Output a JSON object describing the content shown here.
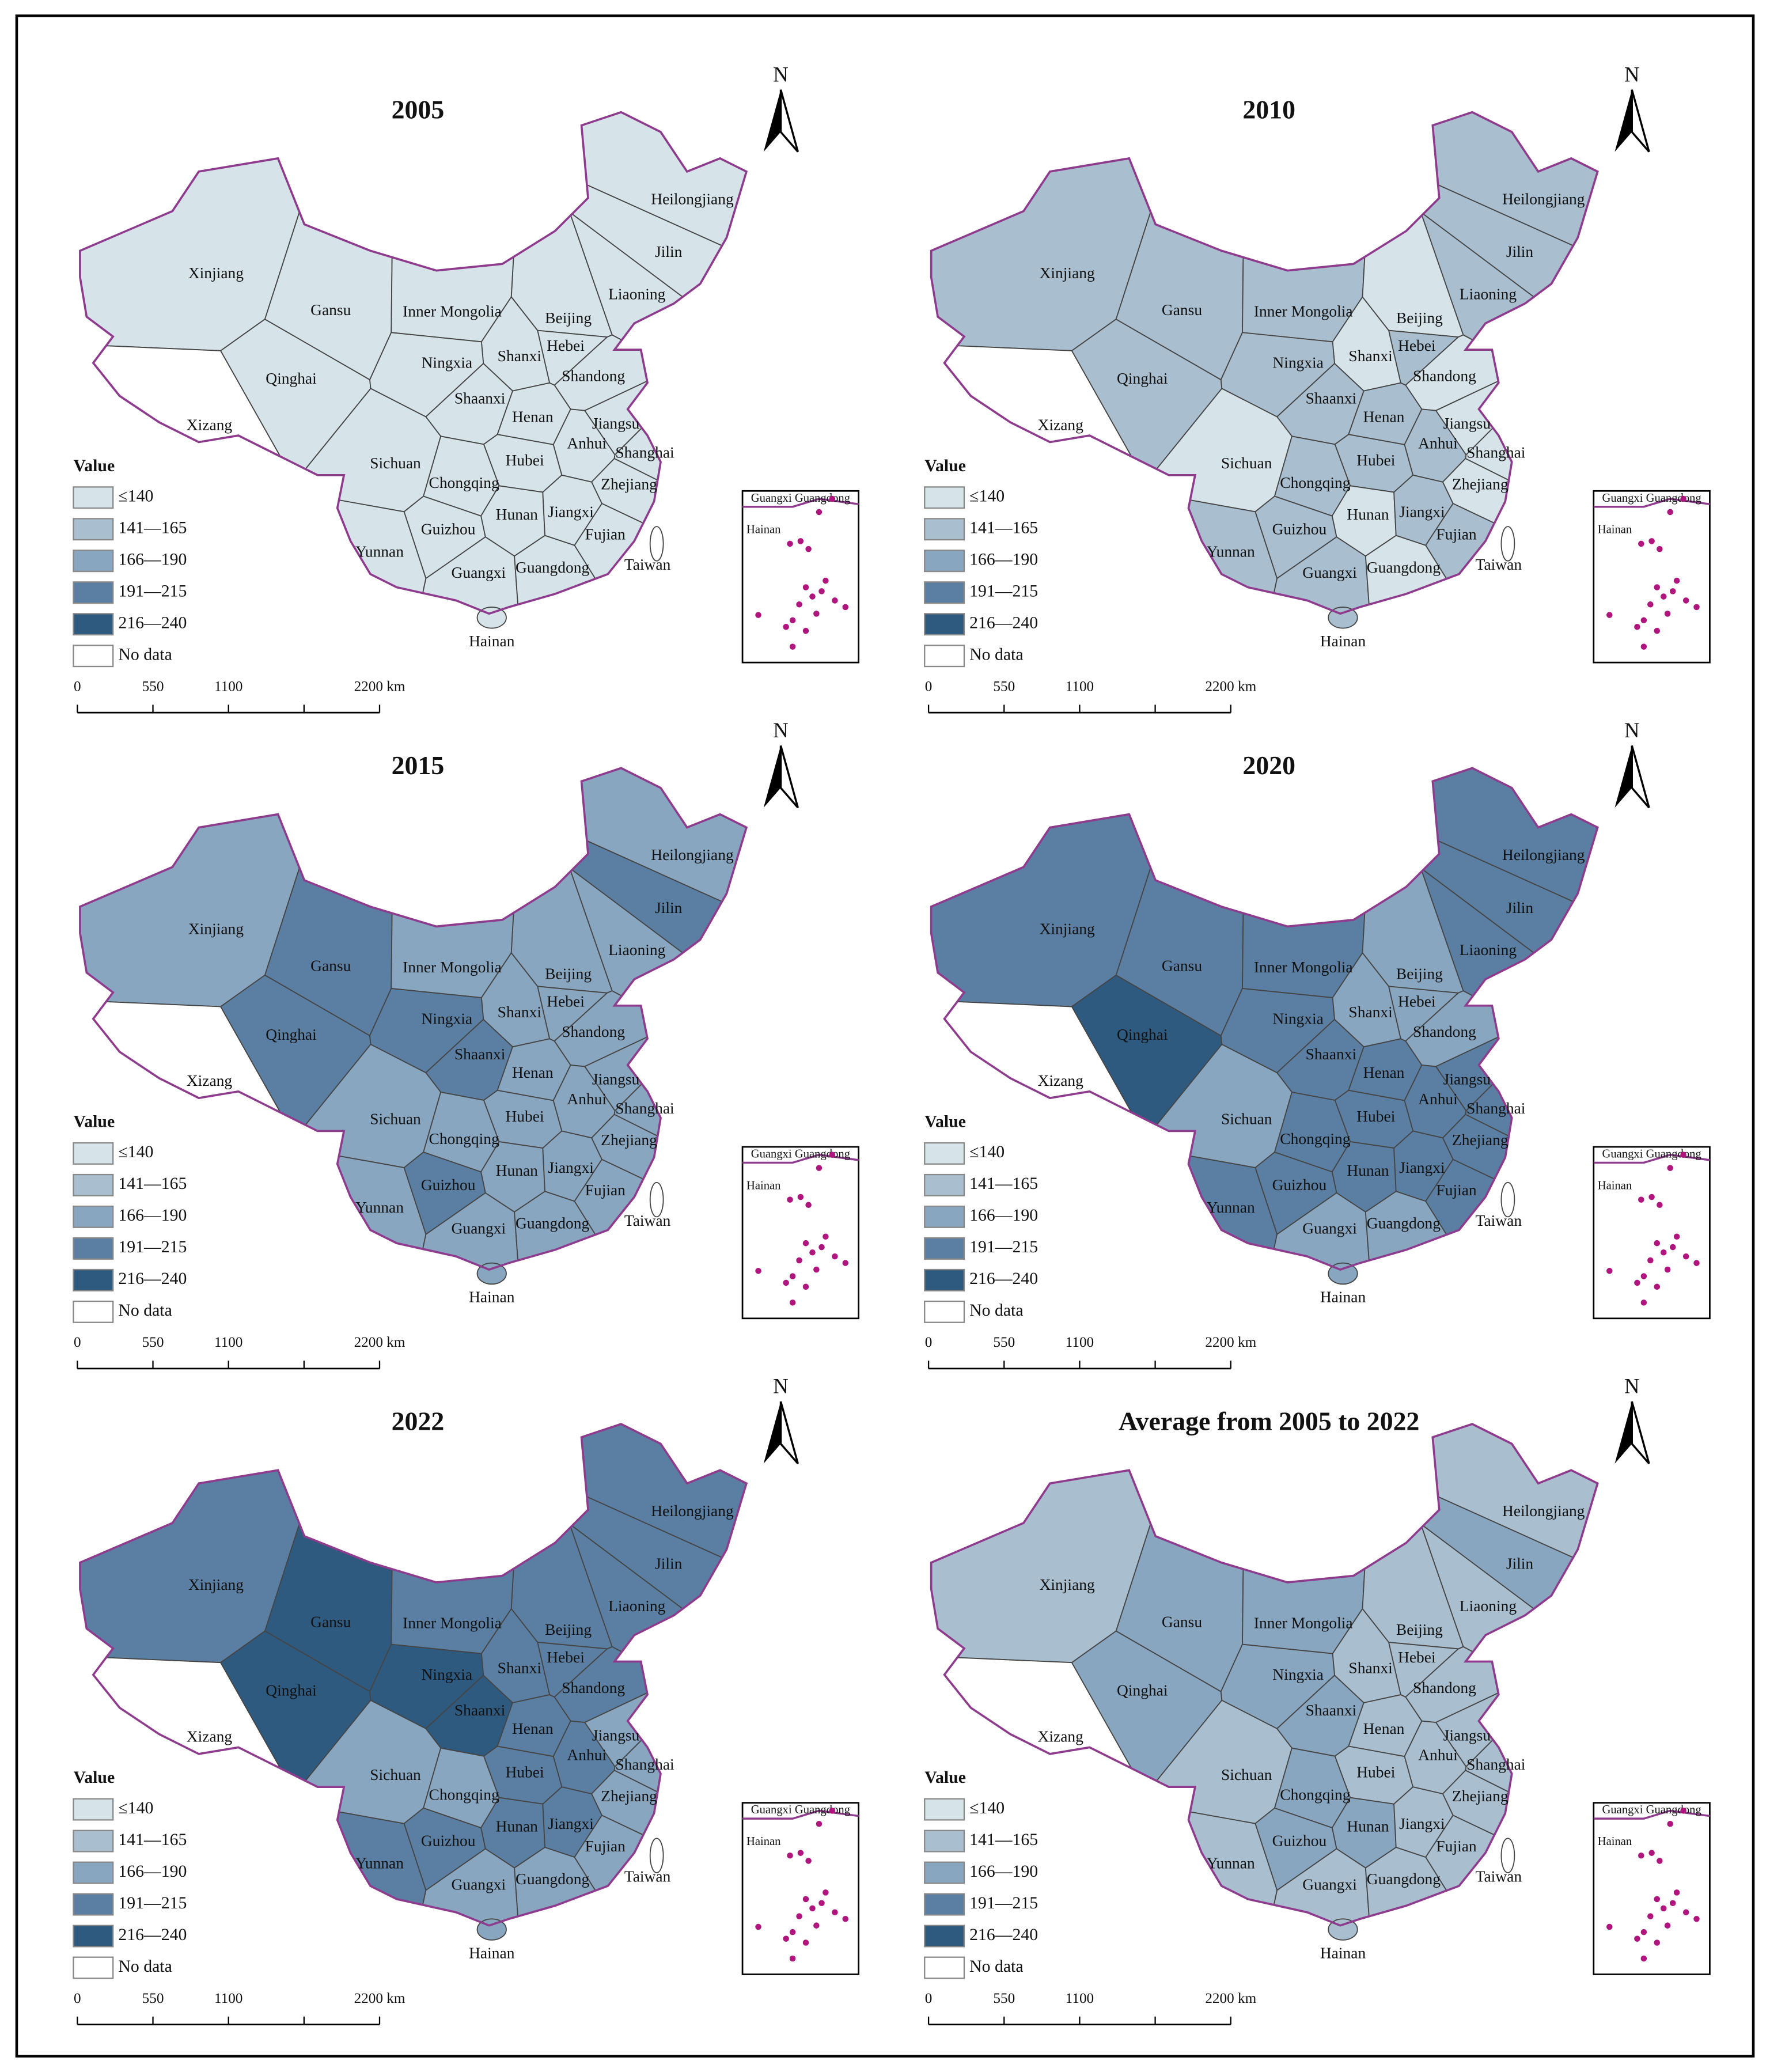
{
  "north": "N",
  "provinces": [
    "Xinjiang",
    "Xizang",
    "Qinghai",
    "Gansu",
    "Inner Mongolia",
    "Heilongjiang",
    "Jilin",
    "Liaoning",
    "Beijing",
    "Hebei",
    "Shanxi",
    "Ningxia",
    "Shaanxi",
    "Shandong",
    "Henan",
    "Jiangsu",
    "Anhui",
    "Shanghai",
    "Hubei",
    "Sichuan",
    "Chongqing",
    "Zhejiang",
    "Hunan",
    "Jiangxi",
    "Fujian",
    "Guizhou",
    "Yunnan",
    "Guangxi",
    "Guangdong",
    "Hainan",
    "Taiwan"
  ],
  "legend": {
    "title": "Value",
    "items": [
      {
        "label": "≤140",
        "color": "#d6e4ea"
      },
      {
        "label": "141—165",
        "color": "#a9bfcf"
      },
      {
        "label": "166—190",
        "color": "#89a6c0"
      },
      {
        "label": "191—215",
        "color": "#5b7fa3"
      },
      {
        "label": "216—240",
        "color": "#2f5a80"
      },
      {
        "label": "No data",
        "color": "#ffffff"
      }
    ]
  },
  "scale_bar": {
    "ticks": [
      0,
      550,
      1100,
      {
        "value": 2200,
        "label": "2200 km"
      }
    ]
  },
  "inset": {
    "labels": [
      "Guangxi Guangdong",
      "Hainan"
    ]
  },
  "panels": [
    {
      "title": "2005",
      "classes": [
        0,
        5,
        0,
        0,
        0,
        0,
        0,
        0,
        0,
        0,
        0,
        0,
        0,
        0,
        0,
        0,
        0,
        0,
        0,
        0,
        0,
        0,
        0,
        0,
        0,
        0,
        0,
        0,
        0,
        0,
        5
      ]
    },
    {
      "title": "2010",
      "classes": [
        1,
        5,
        1,
        1,
        1,
        1,
        1,
        1,
        0,
        1,
        0,
        1,
        1,
        0,
        1,
        0,
        1,
        0,
        1,
        0,
        1,
        0,
        0,
        1,
        1,
        1,
        1,
        1,
        0,
        1,
        5
      ]
    },
    {
      "title": "2015",
      "classes": [
        2,
        5,
        3,
        3,
        2,
        2,
        3,
        2,
        2,
        2,
        2,
        3,
        3,
        2,
        2,
        2,
        2,
        2,
        2,
        2,
        2,
        2,
        2,
        2,
        2,
        3,
        2,
        2,
        2,
        2,
        5
      ]
    },
    {
      "title": "2020",
      "classes": [
        3,
        5,
        4,
        3,
        3,
        3,
        3,
        3,
        2,
        2,
        2,
        3,
        3,
        2,
        3,
        3,
        3,
        3,
        3,
        2,
        3,
        3,
        3,
        3,
        3,
        3,
        3,
        2,
        2,
        2,
        5
      ]
    },
    {
      "title": "2022",
      "classes": [
        3,
        5,
        4,
        4,
        3,
        3,
        3,
        3,
        3,
        3,
        3,
        4,
        4,
        3,
        3,
        2,
        3,
        2,
        3,
        2,
        2,
        2,
        3,
        3,
        2,
        3,
        3,
        2,
        2,
        2,
        5
      ]
    },
    {
      "title": "Average from 2005 to 2022",
      "classes": [
        1,
        5,
        2,
        2,
        2,
        1,
        2,
        1,
        1,
        1,
        1,
        2,
        2,
        1,
        1,
        1,
        1,
        1,
        1,
        1,
        2,
        1,
        2,
        1,
        1,
        2,
        1,
        1,
        1,
        1,
        5
      ]
    }
  ]
}
